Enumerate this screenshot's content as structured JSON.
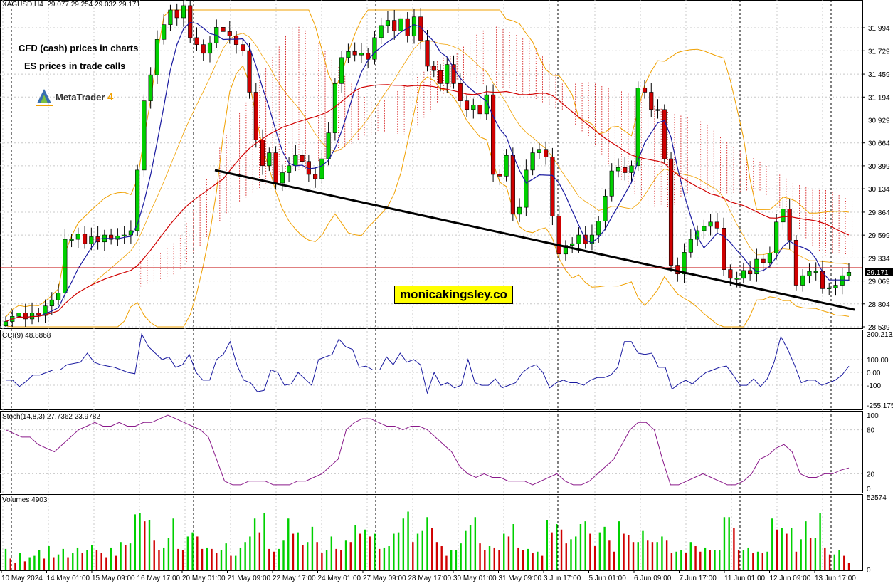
{
  "header": {
    "symbol": "XAGUSD,H4",
    "ohlc": "29.077 29.254 29.032 29.171",
    "cci_label": "CCI(9) 48.8868",
    "stoch_label": "Stoch(14,8,3) 27.7362 23.9782",
    "volume_label": "Volumes 4903"
  },
  "notes": {
    "line1": "CFD (cash) prices in charts",
    "line2": "ES prices in trade calls",
    "platform": "MetaTrader",
    "platform_version": "4"
  },
  "watermark": "monicakingsley.co",
  "colors": {
    "bull": "#00d000",
    "bear": "#d00000",
    "ma_fast": "#1a1aa0",
    "ma_slow": "#d00000",
    "bollinger": "#f0a000",
    "cloud": "#d00000",
    "trendline": "#000000",
    "cci": "#1a1aa0",
    "stoch": "#8a1a8a"
  },
  "chart_data": [
    {
      "type": "candlestick",
      "panel": "price",
      "y_ticks": [
        "31.994",
        "31.729",
        "31.459",
        "31.194",
        "30.929",
        "30.664",
        "30.399",
        "30.134",
        "29.864",
        "29.599",
        "29.334",
        "29.069",
        "28.804",
        "28.539"
      ],
      "ylim": [
        28.539,
        32.2
      ],
      "current_price": "29.171",
      "x_labels": [
        "10 May 2024",
        "14 May 01:00",
        "15 May 09:00",
        "16 May 17:00",
        "20 May 01:00",
        "21 May 09:00",
        "22 May 17:00",
        "24 May 01:00",
        "27 May 09:00",
        "28 May 17:00",
        "30 May 01:00",
        "31 May 09:00",
        "3 Jun 17:00",
        "5 Jun 01:00",
        "6 Jun 09:00",
        "7 Jun 17:00",
        "11 Jun 01:00",
        "12 Jun 09:00",
        "13 Jun 17:00"
      ],
      "close": [
        28.6,
        28.66,
        28.7,
        28.63,
        28.7,
        28.67,
        28.78,
        28.85,
        28.93,
        29.55,
        29.55,
        29.61,
        29.5,
        29.58,
        29.52,
        29.6,
        29.55,
        29.59,
        29.6,
        29.65,
        30.35,
        31.15,
        31.45,
        31.86,
        32.03,
        32.2,
        32.11,
        32.25,
        31.88,
        31.8,
        31.7,
        31.82,
        32.0,
        31.95,
        31.9,
        31.8,
        31.73,
        31.25,
        30.7,
        30.4,
        30.55,
        30.2,
        30.32,
        30.4,
        30.52,
        30.45,
        30.3,
        30.25,
        30.48,
        30.78,
        31.35,
        31.65,
        31.72,
        31.68,
        31.7,
        31.63,
        31.88,
        32.02,
        32.08,
        31.96,
        32.1,
        31.9,
        32.12,
        31.85,
        31.55,
        31.5,
        31.35,
        31.57,
        31.35,
        31.15,
        31.05,
        31.1,
        31.0,
        31.22,
        30.3,
        30.28,
        30.52,
        29.84,
        29.92,
        30.35,
        30.55,
        30.59,
        30.5,
        29.82,
        29.38,
        29.48,
        29.5,
        29.6,
        29.5,
        29.6,
        29.76,
        30.05,
        30.34,
        30.38,
        30.32,
        30.4,
        31.3,
        31.25,
        31.05,
        31.05,
        30.48,
        29.25,
        29.15,
        29.4,
        29.55,
        29.65,
        29.7,
        29.75,
        29.68,
        29.2,
        29.1,
        29.1,
        29.19,
        29.15,
        29.32,
        29.28,
        29.39,
        29.75,
        29.9,
        29.54,
        29.02,
        29.13,
        29.18,
        29.18,
        28.98,
        28.99,
        29.02,
        29.13,
        29.17
      ],
      "series": [
        {
          "name": "CCI(9)",
          "panel": "cci",
          "y_ticks": [
            "300.2132",
            "100.00",
            "0.00",
            "-100",
            "-255.175"
          ],
          "ylim": [
            -255.175,
            300.2132
          ],
          "values": [
            -60,
            -60,
            -110,
            -70,
            -20,
            -20,
            0,
            20,
            20,
            60,
            70,
            80,
            150,
            80,
            60,
            50,
            40,
            20,
            0,
            -10,
            300,
            200,
            150,
            100,
            120,
            40,
            60,
            140,
            0,
            -60,
            -60,
            100,
            140,
            240,
            60,
            -60,
            -80,
            -150,
            -140,
            20,
            0,
            -100,
            -90,
            0,
            -50,
            -100,
            100,
            120,
            140,
            260,
            200,
            180,
            40,
            50,
            20,
            20,
            120,
            60,
            150,
            80,
            100,
            60,
            -160,
            0,
            -100,
            -80,
            -120,
            -100,
            100,
            -80,
            -100,
            -100,
            -50,
            -120,
            -100,
            -80,
            0,
            40,
            60,
            0,
            -120,
            -80,
            -60,
            -80,
            -80,
            -100,
            -60,
            -40,
            -40,
            -20,
            40,
            240,
            240,
            150,
            140,
            150,
            40,
            40,
            -130,
            -90,
            -60,
            -90,
            -40,
            0,
            20,
            40,
            50,
            -20,
            -100,
            -100,
            -50,
            -110,
            -50,
            80,
            280,
            180,
            60,
            -80,
            -60,
            -60,
            -100,
            -80,
            -60,
            -20,
            48.9
          ],
          "scale": "linear"
        },
        {
          "name": "Stoch(14,8,3)",
          "panel": "stoch",
          "y_ticks": [
            "100",
            "80",
            "20",
            "0"
          ],
          "ylim": [
            0,
            100
          ],
          "main": [
            80,
            75,
            70,
            70,
            60,
            55,
            50,
            60,
            70,
            80,
            85,
            90,
            85,
            85,
            90,
            85,
            85,
            90,
            90,
            95,
            100,
            95,
            90,
            85,
            80,
            70,
            40,
            10,
            5,
            5,
            10,
            10,
            10,
            5,
            5,
            5,
            10,
            10,
            15,
            20,
            30,
            40,
            80,
            90,
            95,
            95,
            90,
            85,
            85,
            80,
            85,
            85,
            80,
            70,
            60,
            50,
            30,
            20,
            15,
            20,
            15,
            15,
            10,
            10,
            10,
            5,
            10,
            15,
            20,
            10,
            5,
            5,
            10,
            20,
            30,
            40,
            60,
            80,
            90,
            90,
            80,
            40,
            5,
            5,
            10,
            15,
            20,
            15,
            10,
            5,
            5,
            10,
            20,
            40,
            45,
            55,
            60,
            50,
            20,
            15,
            15,
            20,
            20,
            25,
            28
          ]
        }
      ],
      "annotations": [
        "Descending trendline (support)"
      ]
    },
    {
      "type": "bar",
      "panel": "volume",
      "y_ticks": [
        "52574",
        "0"
      ],
      "ylim": [
        0,
        52574
      ],
      "values": [
        15000,
        8000,
        5000,
        12000,
        6000,
        9000,
        10000,
        14000,
        8000,
        17000,
        9000,
        11000,
        15000,
        9000,
        12000,
        16000,
        12000,
        14000,
        18000,
        14000,
        12000,
        9000,
        16000,
        10000,
        20000,
        18000,
        19000,
        40000,
        41000,
        35000,
        36000,
        21000,
        14000,
        16000,
        23000,
        37000,
        15000,
        14000,
        24000,
        27000,
        24000,
        15000,
        16000,
        15000,
        12000,
        14000,
        19000,
        10000,
        10000,
        16000,
        20000,
        24000,
        37000,
        27000,
        41000,
        15000,
        13000,
        15000,
        21000,
        37000,
        26000,
        27000,
        18000,
        20000,
        31000,
        20000,
        12000,
        14000,
        24000,
        15000,
        14000,
        21000,
        20000,
        32000,
        26000,
        29000,
        24000,
        26000,
        15000,
        16000,
        17000,
        26000,
        27000,
        37000,
        42000,
        20000,
        26000,
        28000,
        38000,
        30000,
        20000,
        17000,
        10000,
        14000,
        14000,
        19000,
        28000,
        32000,
        38000,
        19000,
        14000,
        17000,
        16000,
        14000,
        26000,
        24000,
        33000,
        16000,
        14000,
        15000,
        12000,
        13000,
        10000,
        36000,
        27000,
        33000,
        29000,
        19000,
        22000,
        24000,
        33000,
        35000,
        26000,
        17000,
        27000,
        31000,
        21000,
        13000,
        35000,
        26000,
        25000,
        20000,
        20000,
        28000,
        21000,
        20000,
        20000,
        24000,
        21000,
        12000,
        13000,
        14000,
        12000,
        20000,
        17000,
        13000,
        16000,
        14000,
        14000,
        14000,
        38000,
        38000,
        30000,
        14000,
        14000,
        16000,
        12000,
        13000,
        12000,
        13000,
        37000,
        29000,
        30000,
        26000,
        30000,
        13000,
        22000,
        35000,
        23000,
        23000,
        41000,
        16000,
        11000,
        11000,
        14000,
        10000,
        5000
      ]
    }
  ]
}
